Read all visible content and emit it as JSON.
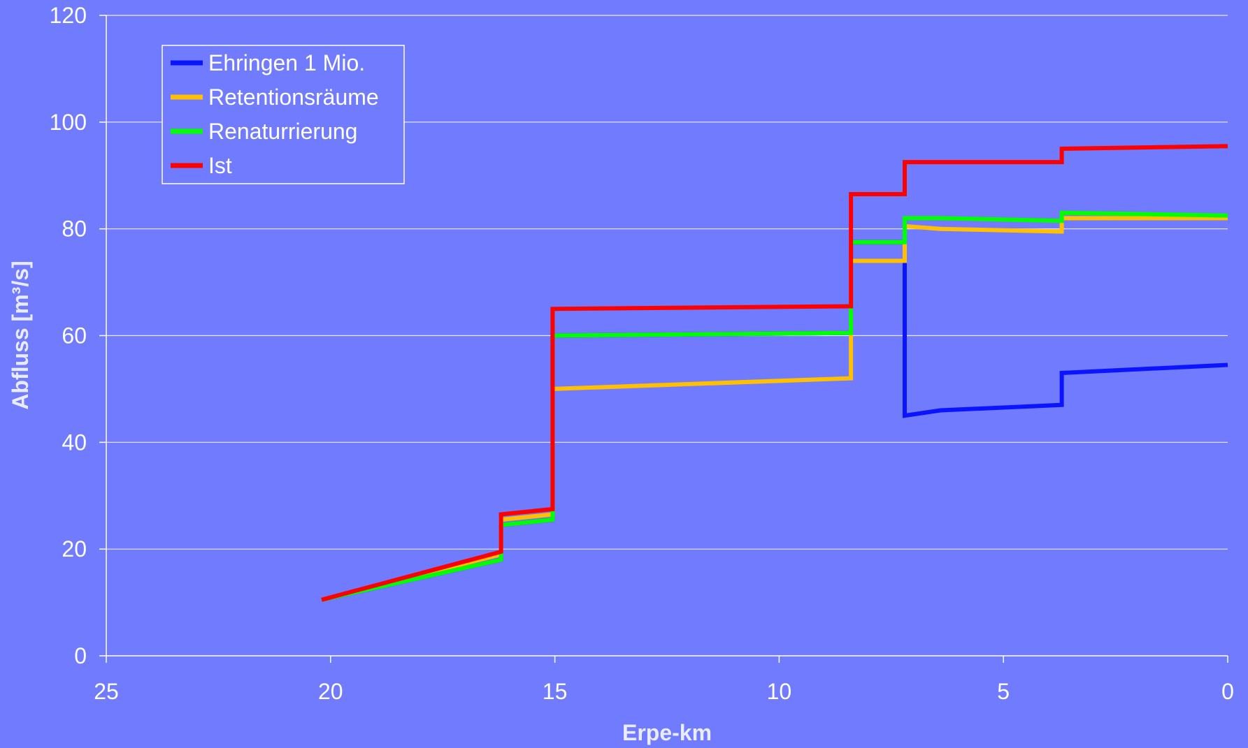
{
  "chart_data": {
    "type": "line",
    "xlabel": "Erpe-km",
    "ylabel": "Abfluss [m³/s]",
    "xlim": [
      25,
      0
    ],
    "ylim": [
      0,
      120
    ],
    "x_reversed": true,
    "xticks": [
      25,
      20,
      15,
      10,
      5,
      0
    ],
    "yticks": [
      0,
      20,
      40,
      60,
      80,
      100,
      120
    ],
    "grid": true,
    "legend_position": "top-left",
    "series": [
      {
        "name": "Ehringen 1 Mio.",
        "color": "#0a14ff",
        "x": [
          20.2,
          16.2,
          16.2,
          15.05,
          15.05,
          8.4,
          8.4,
          7.2,
          7.2,
          6.4,
          3.7,
          3.7,
          0
        ],
        "y": [
          10.5,
          18.0,
          24.5,
          25.5,
          60.0,
          60.5,
          77.5,
          77.5,
          45.0,
          46.0,
          47.0,
          53.0,
          54.5
        ]
      },
      {
        "name": "Retentionsräume",
        "color": "#ffc000",
        "x": [
          20.2,
          16.2,
          16.2,
          15.05,
          15.05,
          8.4,
          8.4,
          7.2,
          7.2,
          6.4,
          3.7,
          3.7,
          0
        ],
        "y": [
          10.5,
          19.0,
          25.5,
          26.5,
          50.0,
          52.0,
          74.0,
          74.0,
          80.5,
          80.0,
          79.5,
          82.0,
          82.0
        ]
      },
      {
        "name": "Renaturrierung",
        "color": "#00ff00",
        "x": [
          20.2,
          16.2,
          16.2,
          15.05,
          15.05,
          8.4,
          8.4,
          7.2,
          7.2,
          6.4,
          3.7,
          3.7,
          0
        ],
        "y": [
          10.5,
          18.0,
          24.5,
          25.5,
          60.0,
          60.5,
          77.5,
          77.5,
          82.0,
          82.0,
          81.5,
          83.0,
          82.5
        ]
      },
      {
        "name": "Ist",
        "color": "#ff0000",
        "x": [
          20.2,
          16.2,
          16.2,
          15.05,
          15.05,
          8.4,
          8.4,
          7.2,
          7.2,
          6.4,
          3.7,
          3.7,
          0
        ],
        "y": [
          10.5,
          19.5,
          26.5,
          27.5,
          65.0,
          65.5,
          86.5,
          86.5,
          92.5,
          92.5,
          92.5,
          95.0,
          95.5
        ]
      }
    ]
  }
}
